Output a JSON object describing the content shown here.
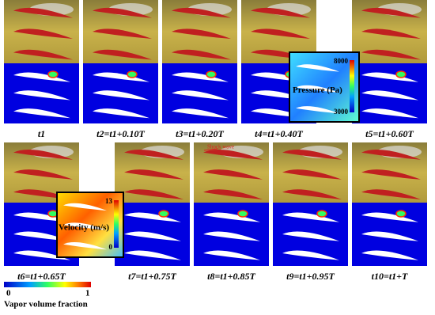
{
  "panels": [
    {
      "label": "t1"
    },
    {
      "label": "t2=t1+0.10T"
    },
    {
      "label": "t3=t1+0.20T"
    },
    {
      "label": "t4=t1+0.40T"
    },
    {
      "label": "t5=t1+0.60T"
    },
    {
      "label": "t6=t1+0.65T"
    },
    {
      "label": "t7=t1+0.75T"
    },
    {
      "label": "t8=t1+0.85T"
    },
    {
      "label": "t9=t1+0.95T"
    },
    {
      "label": "t10=t1+T"
    }
  ],
  "pressure_inset": {
    "title": "Pressure (Pa)",
    "max": "8000",
    "min": "3000"
  },
  "velocity_inset": {
    "title": "Velocity (m/s)",
    "max": "13",
    "min": "0"
  },
  "annotation": "Shock wave",
  "colorbar": {
    "min": "0",
    "max": "1",
    "title": "Vapor volume fraction"
  }
}
